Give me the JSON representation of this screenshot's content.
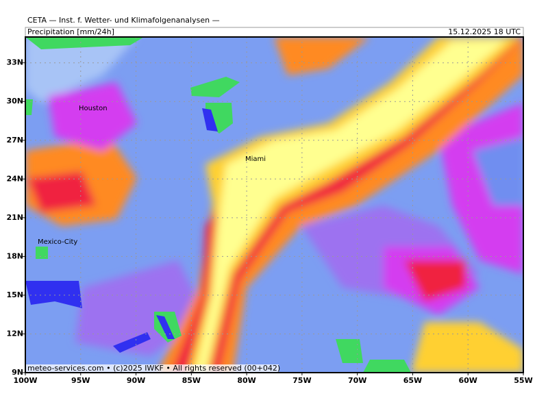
{
  "header": {
    "title": "CETA — Inst. f. Wetter- und Klimafolgenanalysen —",
    "variable": "Precipitation [mm/24h]",
    "valid_time": "15.12.2025 18 UTC"
  },
  "map": {
    "lon_range": [
      -100,
      -55
    ],
    "lat_range": [
      9,
      35
    ],
    "lon_ticks": [
      {
        "value": -100,
        "label": "100W"
      },
      {
        "value": -95,
        "label": "95W"
      },
      {
        "value": -90,
        "label": "90W"
      },
      {
        "value": -85,
        "label": "85W"
      },
      {
        "value": -80,
        "label": "80W"
      },
      {
        "value": -75,
        "label": "75W"
      },
      {
        "value": -70,
        "label": "70W"
      },
      {
        "value": -65,
        "label": "65W"
      },
      {
        "value": -60,
        "label": "60W"
      },
      {
        "value": -55,
        "label": "55W"
      }
    ],
    "lat_ticks": [
      {
        "value": 9,
        "label": "9N"
      },
      {
        "value": 12,
        "label": "12N"
      },
      {
        "value": 15,
        "label": "15N"
      },
      {
        "value": 18,
        "label": "18N"
      },
      {
        "value": 21,
        "label": "21N"
      },
      {
        "value": 24,
        "label": "24N"
      },
      {
        "value": 27,
        "label": "27N"
      },
      {
        "value": 30,
        "label": "30N"
      },
      {
        "value": 33,
        "label": "33N"
      }
    ],
    "cities": [
      "Houston",
      "Miami",
      "Mexico-City"
    ]
  },
  "footer": {
    "credit": "meteo-services.com • (c)2025 IWKF • All rights reserved (00+042)"
  }
}
